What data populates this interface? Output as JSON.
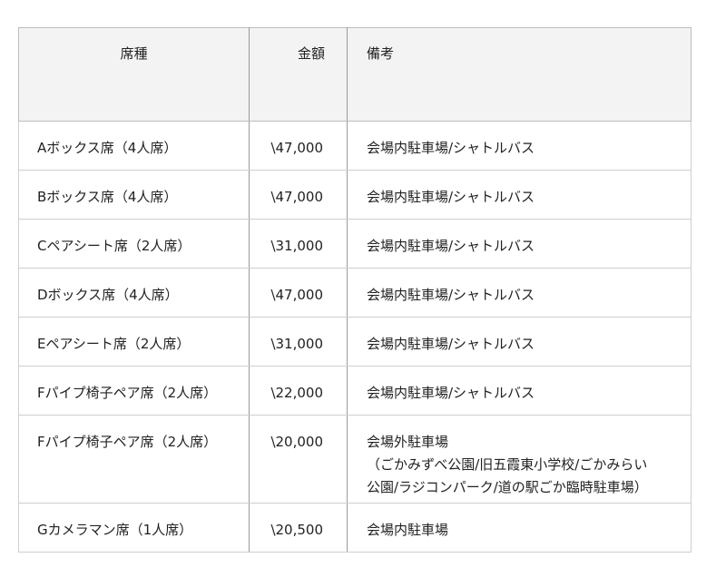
{
  "table": {
    "headers": [
      "席種",
      "金額",
      "備考"
    ],
    "rows": [
      {
        "seat": "Aボックス席（4人席）",
        "price": "\\47,000",
        "note": "会場内駐車場/シャトルバス"
      },
      {
        "seat": "Bボックス席（4人席）",
        "price": "\\47,000",
        "note": "会場内駐車場/シャトルバス"
      },
      {
        "seat": "Cペアシート席（2人席）",
        "price": "\\31,000",
        "note": "会場内駐車場/シャトルバス"
      },
      {
        "seat": "Dボックス席（4人席）",
        "price": "\\47,000",
        "note": "会場内駐車場/シャトルバス"
      },
      {
        "seat": "Eペアシート席（2人席）",
        "price": "\\31,000",
        "note": "会場内駐車場/シャトルバス"
      },
      {
        "seat": "Fパイプ椅子ペア席（2人席）",
        "price": "\\22,000",
        "note": "会場内駐車場/シャトルバス"
      },
      {
        "seat": "Fパイプ椅子ペア席（2人席）",
        "price": "\\20,000",
        "note": "会場外駐車場\n（ごかみずべ公園/旧五霞東小学校/ごかみらい\n公園/ラジコンパーク/道の駅ごか臨時駐車場）"
      },
      {
        "seat": "Gカメラマン席（1人席）",
        "price": "\\20,500",
        "note": "会場内駐車場"
      }
    ]
  }
}
